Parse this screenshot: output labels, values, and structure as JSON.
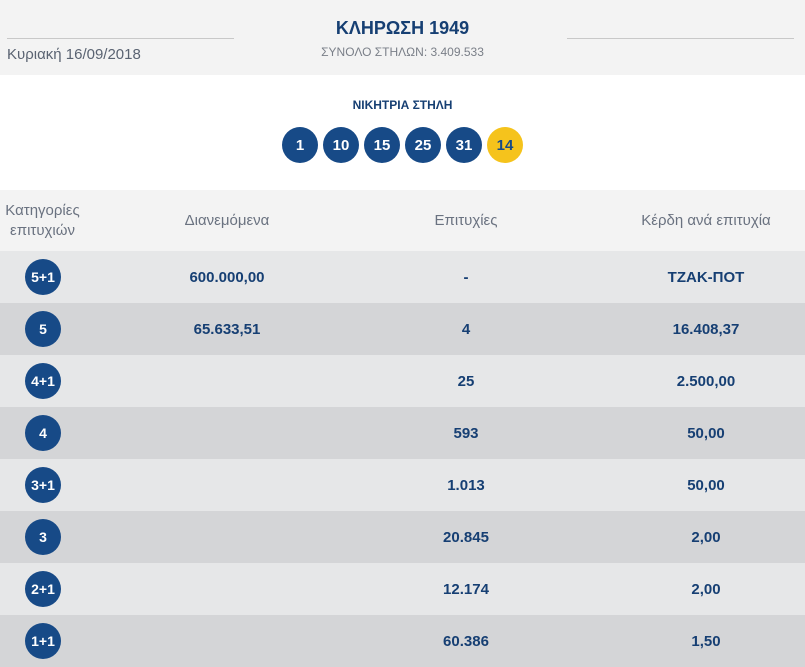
{
  "header": {
    "date": "Κυριακή 16/09/2018",
    "title": "ΚΛΗΡΩΣΗ 1949",
    "subtitle": "ΣΥΝΟΛΟ ΣΤΗΛΩΝ: 3.409.533"
  },
  "winning": {
    "label": "ΝΙΚΗΤΡΙΑ ΣΤΗΛΗ",
    "numbers": [
      "1",
      "10",
      "15",
      "25",
      "31"
    ],
    "bonus": "14"
  },
  "table": {
    "headers": {
      "category_line1": "Κατηγορίες",
      "category_line2": "επιτυχιών",
      "distributed": "Διανεμόμενα",
      "winners": "Επιτυχίες",
      "prize": "Κέρδη ανά επιτυχία"
    },
    "rows": [
      {
        "category": "5+1",
        "distributed": "600.000,00",
        "winners": "-",
        "prize": "ΤΖΑΚ-ΠΟΤ"
      },
      {
        "category": "5",
        "distributed": "65.633,51",
        "winners": "4",
        "prize": "16.408,37"
      },
      {
        "category": "4+1",
        "distributed": "",
        "winners": "25",
        "prize": "2.500,00"
      },
      {
        "category": "4",
        "distributed": "",
        "winners": "593",
        "prize": "50,00"
      },
      {
        "category": "3+1",
        "distributed": "",
        "winners": "1.013",
        "prize": "50,00"
      },
      {
        "category": "3",
        "distributed": "",
        "winners": "20.845",
        "prize": "2,00"
      },
      {
        "category": "2+1",
        "distributed": "",
        "winners": "12.174",
        "prize": "2,00"
      },
      {
        "category": "1+1",
        "distributed": "",
        "winners": "60.386",
        "prize": "1,50"
      }
    ]
  },
  "colors": {
    "primary": "#174a87",
    "bonus": "#f5c31c",
    "row_light": "#e6e7e8",
    "row_dark": "#d4d5d7"
  }
}
